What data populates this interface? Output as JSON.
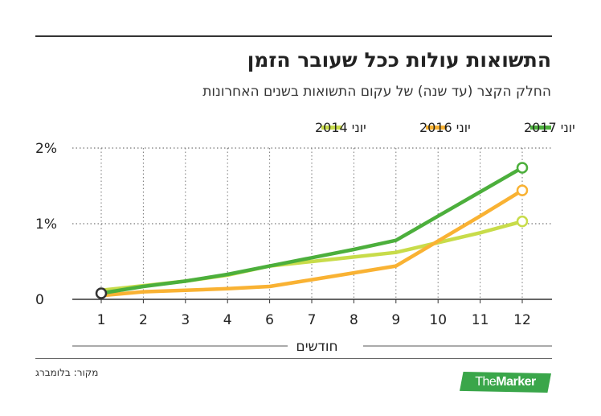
{
  "title": "התשואות עולות ככל שעובר הזמן",
  "subtitle": "החלק הקצר (עד שנה) של עקום התשואות בשנים האחרונות",
  "source": "מקור: בלומברג",
  "brand": {
    "part1": "The",
    "part2": "Marker",
    "color": "#3aa64a"
  },
  "chart_data": {
    "type": "line",
    "categories": [
      "1",
      "2",
      "3",
      "4",
      "6",
      "7",
      "8",
      "9",
      "10",
      "11",
      "12"
    ],
    "xlabel": "חודשים",
    "ylabel": "",
    "ylim": [
      0,
      2
    ],
    "yticks": [
      {
        "value": 0,
        "label": "0"
      },
      {
        "value": 1,
        "label": "1%"
      },
      {
        "value": 2,
        "label": "2%"
      }
    ],
    "grid": "dotted",
    "legend_position": "top-right",
    "series": [
      {
        "name": "יוני 2017",
        "color": "#4caf3c",
        "values": [
          0.08,
          0.17,
          0.24,
          0.33,
          0.44,
          0.55,
          0.66,
          0.78,
          1.1,
          1.42,
          1.74
        ]
      },
      {
        "name": "יוני 2016",
        "color": "#f9b233",
        "values": [
          0.05,
          0.1,
          0.12,
          0.14,
          0.17,
          0.26,
          0.35,
          0.44,
          0.77,
          1.1,
          1.44
        ]
      },
      {
        "name": "יוני 2014",
        "color": "#c8dc4a",
        "values": [
          0.12,
          0.18,
          0.24,
          0.32,
          0.44,
          0.5,
          0.56,
          0.62,
          0.75,
          0.88,
          1.03
        ]
      }
    ],
    "highlight_start": 0.08
  }
}
